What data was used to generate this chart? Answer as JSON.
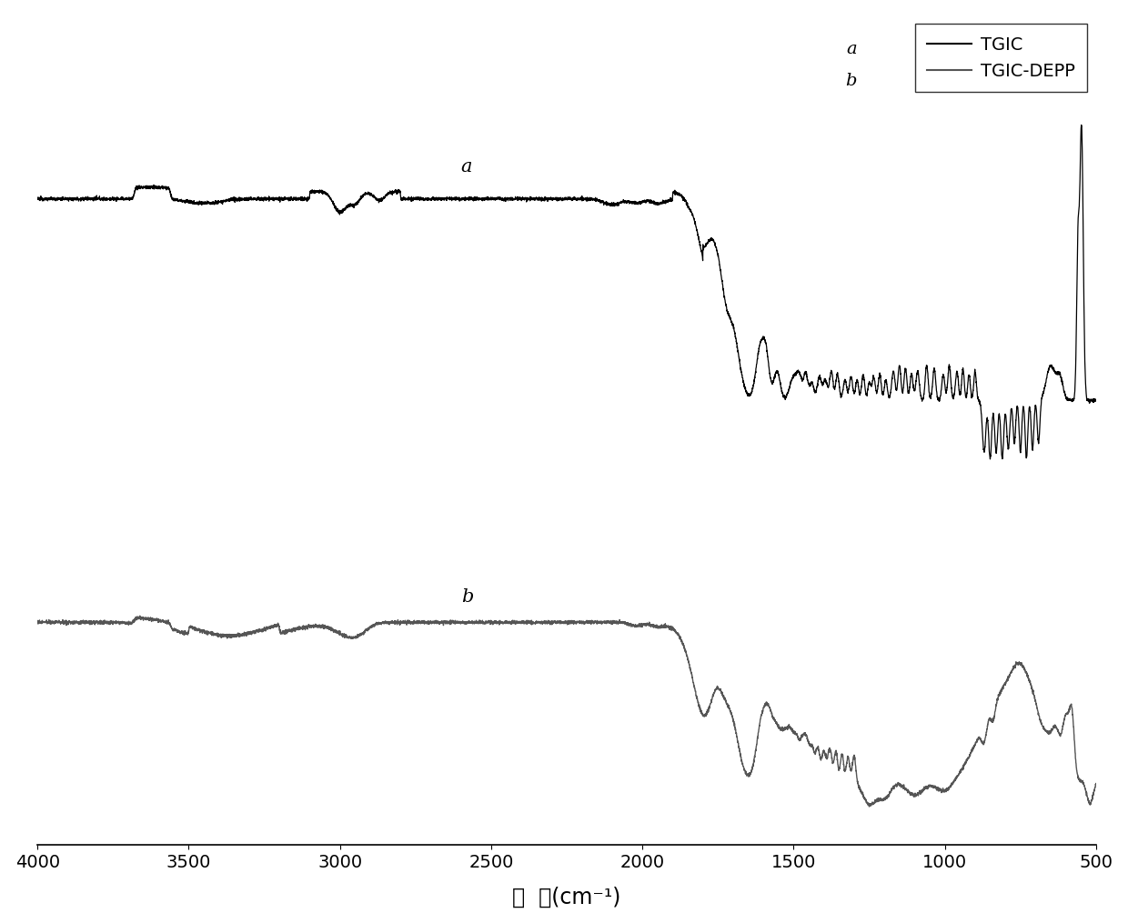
{
  "xlabel": "波  数(cm⁻¹)",
  "xmin": 500,
  "xmax": 4000,
  "xticks": [
    4000,
    3500,
    3000,
    2500,
    2000,
    1500,
    1000,
    500
  ],
  "line_a_color": "#000000",
  "line_b_color": "#555555",
  "line_a_label": "TGIC",
  "line_b_label": "TGIC-DEPP",
  "label_a": "a",
  "label_b": "b",
  "background_color": "#ffffff"
}
